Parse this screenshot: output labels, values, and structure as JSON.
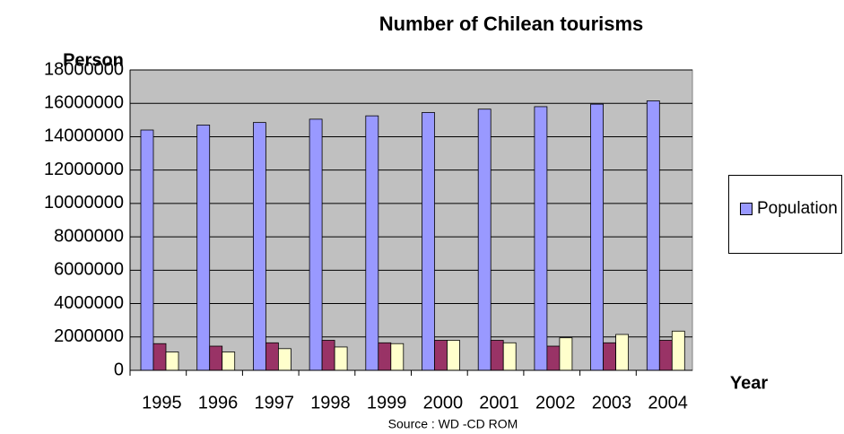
{
  "chart_data": {
    "type": "bar",
    "title": "Number of Chilean tourisms",
    "y_label": "Person",
    "x_label": "Year",
    "source": "Source : WD -CD ROM",
    "categories": [
      "1995",
      "1996",
      "1997",
      "1998",
      "1999",
      "2000",
      "2001",
      "2002",
      "2003",
      "2004"
    ],
    "series": [
      {
        "name": "Population",
        "color": "#9999ff",
        "values": [
          14400000,
          14700000,
          14850000,
          15050000,
          15250000,
          15450000,
          15650000,
          15800000,
          15950000,
          16150000
        ]
      },
      {
        "color": "#993366",
        "values": [
          1600000,
          1450000,
          1650000,
          1800000,
          1650000,
          1800000,
          1800000,
          1450000,
          1650000,
          1800000
        ]
      },
      {
        "color": "#ffffcc",
        "values": [
          1100000,
          1100000,
          1300000,
          1400000,
          1600000,
          1800000,
          1650000,
          1950000,
          2150000,
          2350000
        ]
      }
    ],
    "ylim": [
      0,
      18000000
    ],
    "yticks": [
      0,
      2000000,
      4000000,
      6000000,
      8000000,
      10000000,
      12000000,
      14000000,
      16000000,
      18000000
    ],
    "grid": true,
    "plot_background": "#c0c0c0",
    "legend": "right"
  }
}
